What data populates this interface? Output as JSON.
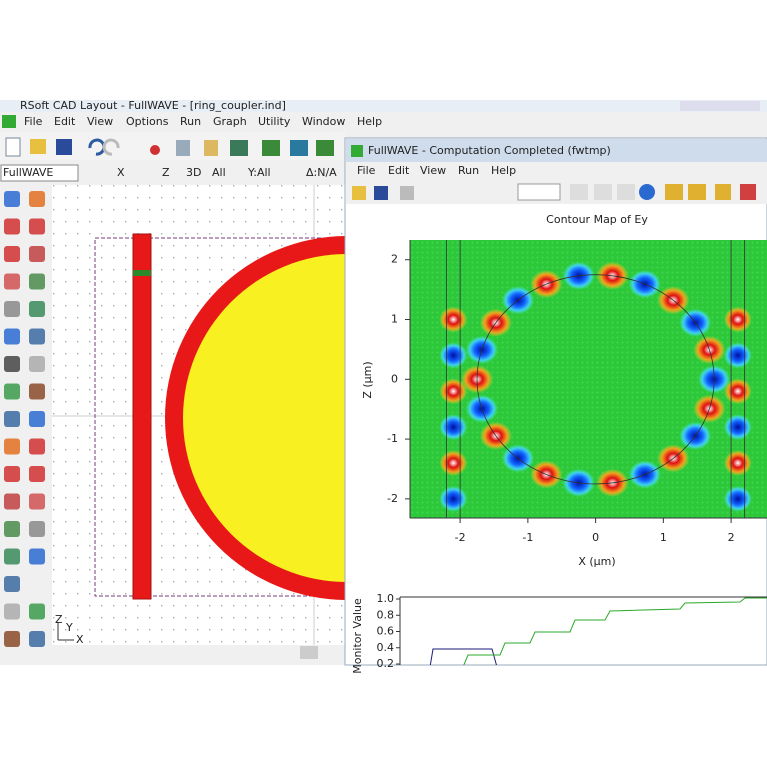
{
  "cad_window": {
    "title": "RSoft CAD Layout - FullWAVE - [ring_coupler.ind]",
    "menu": [
      "File",
      "Edit",
      "View",
      "Options",
      "Run",
      "Graph",
      "Utility",
      "Window",
      "Help"
    ],
    "simulator": "FullWAVE",
    "toolbar_labels": [
      "X",
      "Z",
      "3D",
      "All",
      "Y:All",
      "Δ:N/A"
    ],
    "axes_indicator": [
      "Z",
      "Y",
      "X"
    ]
  },
  "fullwave_window": {
    "title": "FullWAVE - Computation Completed (fwtmp)",
    "menu": [
      "File",
      "Edit",
      "View",
      "Run",
      "Help"
    ],
    "contour": {
      "title": "Contour Map of Ey",
      "xlabel": "X (μm)",
      "ylabel": "Z (μm)",
      "xlim": [
        -2.74,
        2.53
      ],
      "ylim": [
        -2.32,
        2.33
      ],
      "xticks": [
        -2,
        -1,
        0,
        1,
        2
      ],
      "yticks": [
        -2,
        -1,
        0,
        1,
        2
      ]
    },
    "monitor": {
      "ylabel": "Monitor Value",
      "ylim": [
        0.2,
        1.0
      ],
      "yticks": [
        {
          "value": 1.0,
          "label": "1.0"
        },
        {
          "value": 0.8,
          "label": "0.8"
        },
        {
          "value": 0.6,
          "label": "0.6"
        },
        {
          "value": 0.4,
          "label": "0.4"
        },
        {
          "value": 0.2,
          "label": "0.2"
        }
      ]
    }
  }
}
